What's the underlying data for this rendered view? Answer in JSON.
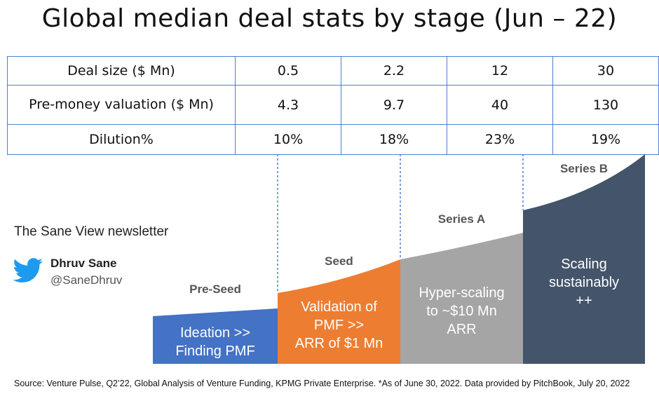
{
  "title": "Global median deal stats by stage (Jun – 22)",
  "chart_data": {
    "type": "table",
    "columns": [
      "Pre-Seed",
      "Seed",
      "Series A",
      "Series B"
    ],
    "rows": [
      {
        "label": "Deal size ($ Mn)",
        "values": [
          "0.5",
          "2.2",
          "12",
          "30"
        ]
      },
      {
        "label": "Pre-money valuation ($ Mn)",
        "values": [
          "4.3",
          "9.7",
          "40",
          "130"
        ]
      },
      {
        "label": "Dilution%",
        "values": [
          "10%",
          "18%",
          "23%",
          "19%"
        ]
      }
    ]
  },
  "stages": [
    {
      "name": "Pre-Seed",
      "description": "Ideation >>\nFinding PMF",
      "color": "#4472c4"
    },
    {
      "name": "Seed",
      "description": "Validation of\nPMF >>\nARR of $1 Mn",
      "color": "#ed7d31"
    },
    {
      "name": "Series A",
      "description": "Hyper-scaling\nto ~$10 Mn\nARR",
      "color": "#a5a5a5"
    },
    {
      "name": "Series B",
      "description": "Scaling\nsustainably\n++",
      "color": "#44546a"
    }
  ],
  "newsletter": "The Sane View newsletter",
  "author": {
    "name": "Dhruv Sane",
    "handle": "@SaneDhruv",
    "icon": "twitter-bird-icon"
  },
  "source": "Source: Venture Pulse, Q2’22, Global Analysis of Venture Funding, KPMG Private Enterprise. *As of June 30, 2022. Data provided by PitchBook, July 20, 2022",
  "colors": {
    "table_border": "#4a7fd4",
    "twitter": "#1d9bf0"
  }
}
